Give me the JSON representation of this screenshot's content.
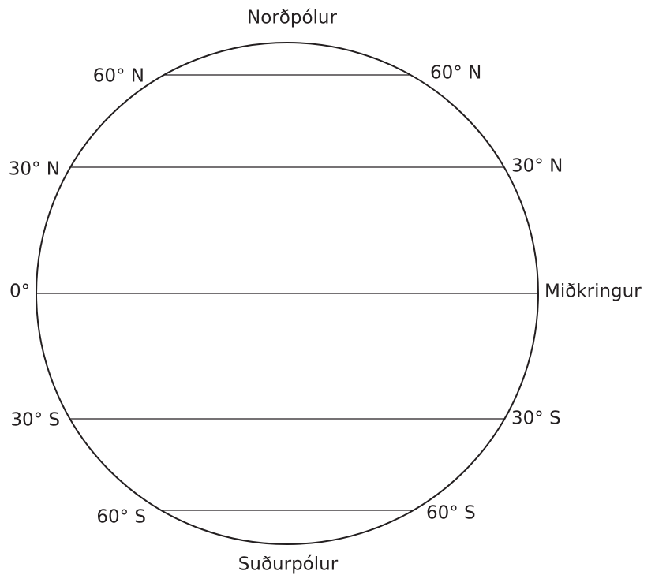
{
  "north_pole": "Norðpólur",
  "south_pole": "Suðurpólur",
  "parallels": [
    {
      "left": "60° N",
      "right": "60° N"
    },
    {
      "left": "30° N",
      "right": "30° N"
    },
    {
      "left": "0°",
      "right": "Miðkringur"
    },
    {
      "left": "30° S",
      "right": "30° S"
    },
    {
      "left": "60° S",
      "right": "60° S"
    }
  ]
}
